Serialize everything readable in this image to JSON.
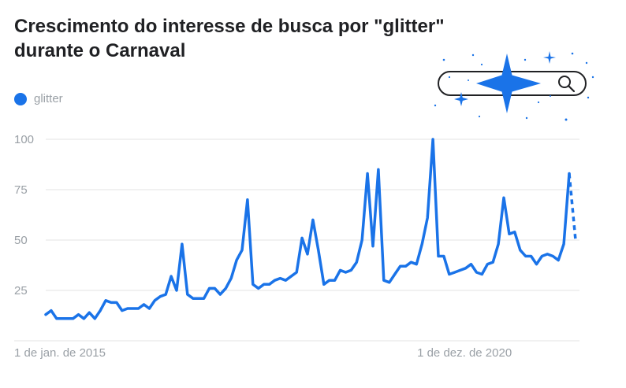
{
  "title": "Crescimento do interesse de busca por \"glitter\" durante o Carnaval",
  "colors": {
    "series": "#1a73e8",
    "grid": "#e3e3e3",
    "axis_text": "#9aa0a6",
    "title": "#202124"
  },
  "decoration": {
    "icon": "search-bar-with-sparkles-icon"
  },
  "chart_data": {
    "type": "line",
    "title": "Crescimento do interesse de busca por \"glitter\" durante o Carnaval",
    "xlabel": "",
    "ylabel": "",
    "ylim": [
      0,
      100
    ],
    "yticks": [
      25,
      50,
      75,
      100
    ],
    "xtick_labels": [
      {
        "index": 0,
        "label": "1 de jan. de 2015"
      },
      {
        "index": 71,
        "label": "1 de dez. de 2020"
      }
    ],
    "grid": true,
    "legend": {
      "position": "top-left",
      "entries": [
        "glitter"
      ]
    },
    "series": [
      {
        "name": "glitter",
        "values": [
          13,
          15,
          11,
          11,
          11,
          11,
          13,
          11,
          14,
          11,
          15,
          20,
          19,
          19,
          15,
          16,
          16,
          16,
          18,
          16,
          20,
          22,
          23,
          32,
          25,
          48,
          23,
          21,
          21,
          21,
          26,
          26,
          23,
          26,
          31,
          40,
          45,
          70,
          28,
          26,
          28,
          28,
          30,
          31,
          30,
          32,
          34,
          51,
          43,
          60,
          45,
          28,
          30,
          30,
          35,
          34,
          35,
          39,
          50,
          83,
          47,
          85,
          30,
          29,
          33,
          37,
          37,
          39,
          38,
          48,
          61,
          100,
          42,
          42,
          33,
          34,
          35,
          36,
          38,
          34,
          33,
          38,
          39,
          48,
          71,
          53,
          54,
          45,
          42,
          42,
          38,
          42,
          43,
          42,
          40,
          48,
          83
        ],
        "projected": [
          83,
          50
        ]
      }
    ]
  }
}
